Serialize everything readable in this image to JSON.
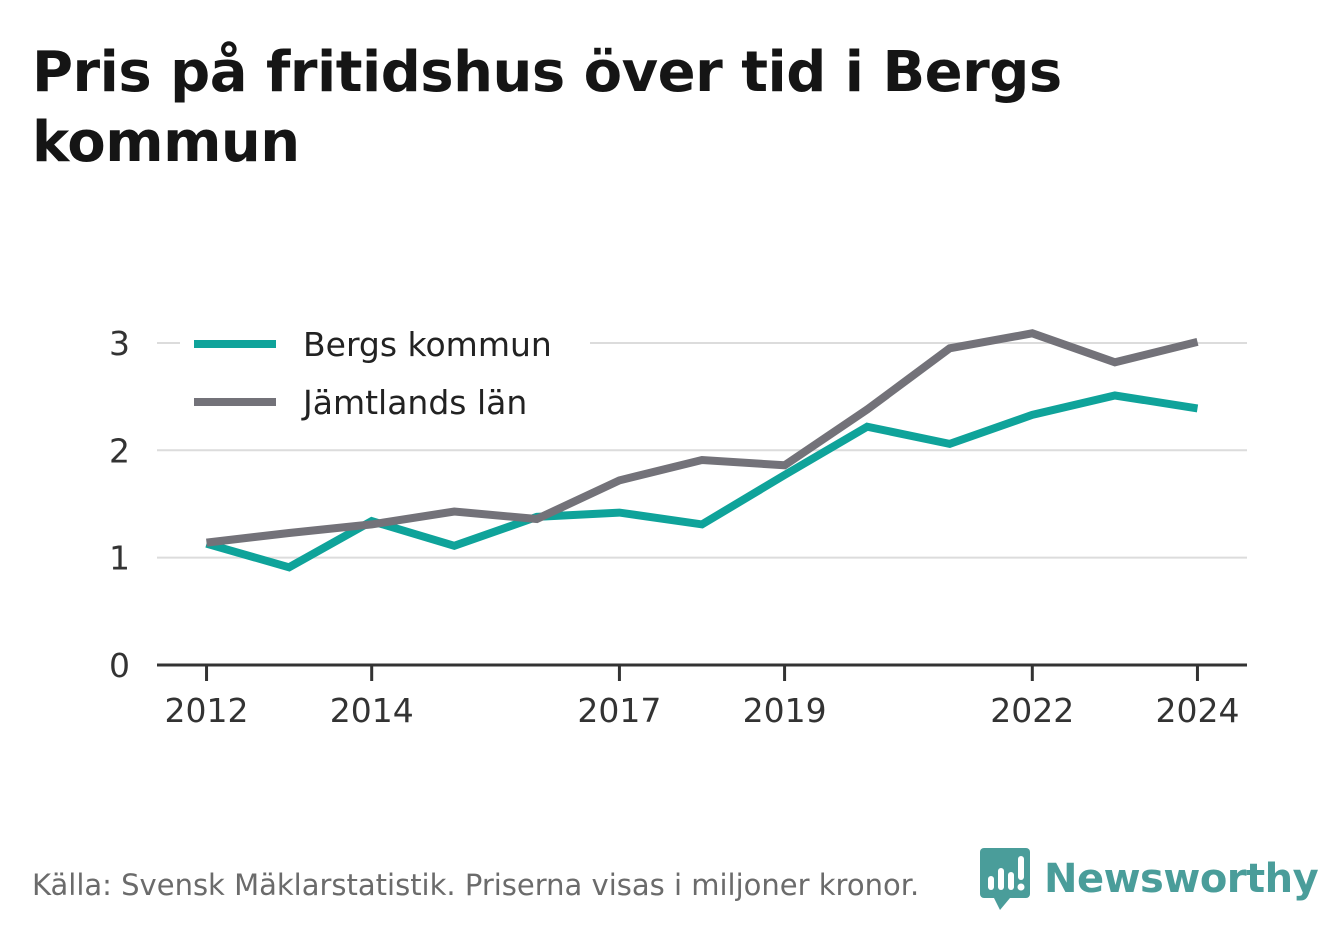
{
  "title": "Pris på fritidshus över tid i Bergs kommun",
  "source": "Källa: Svensk Mäklarstatistik. Priserna visas i miljoner kronor.",
  "brand": {
    "name": "Newsworthy",
    "icon": "newsworthy-logo-icon",
    "color": "#4a9d9a"
  },
  "chart_data": {
    "type": "line",
    "x": [
      2012,
      2013,
      2014,
      2015,
      2016,
      2017,
      2018,
      2019,
      2020,
      2021,
      2022,
      2023,
      2024
    ],
    "x_tick_labels": [
      "2012",
      "2014",
      "2017",
      "2019",
      "2022",
      "2024"
    ],
    "y_ticks": [
      0,
      1,
      2,
      3
    ],
    "ylim": [
      0,
      3.4
    ],
    "xlim": [
      2011.4,
      2024.6
    ],
    "grid": true,
    "legend_position": "top-left",
    "series": [
      {
        "name": "Bergs kommun",
        "color": "#0fa39a",
        "values": [
          1.13,
          0.91,
          1.34,
          1.11,
          1.38,
          1.42,
          1.31,
          1.77,
          2.22,
          2.06,
          2.33,
          2.51,
          2.39
        ]
      },
      {
        "name": "Jämtlands län",
        "color": "#737279",
        "values": [
          1.14,
          1.23,
          1.31,
          1.43,
          1.36,
          1.72,
          1.91,
          1.86,
          2.38,
          2.95,
          3.09,
          2.82,
          3.01
        ]
      }
    ]
  }
}
